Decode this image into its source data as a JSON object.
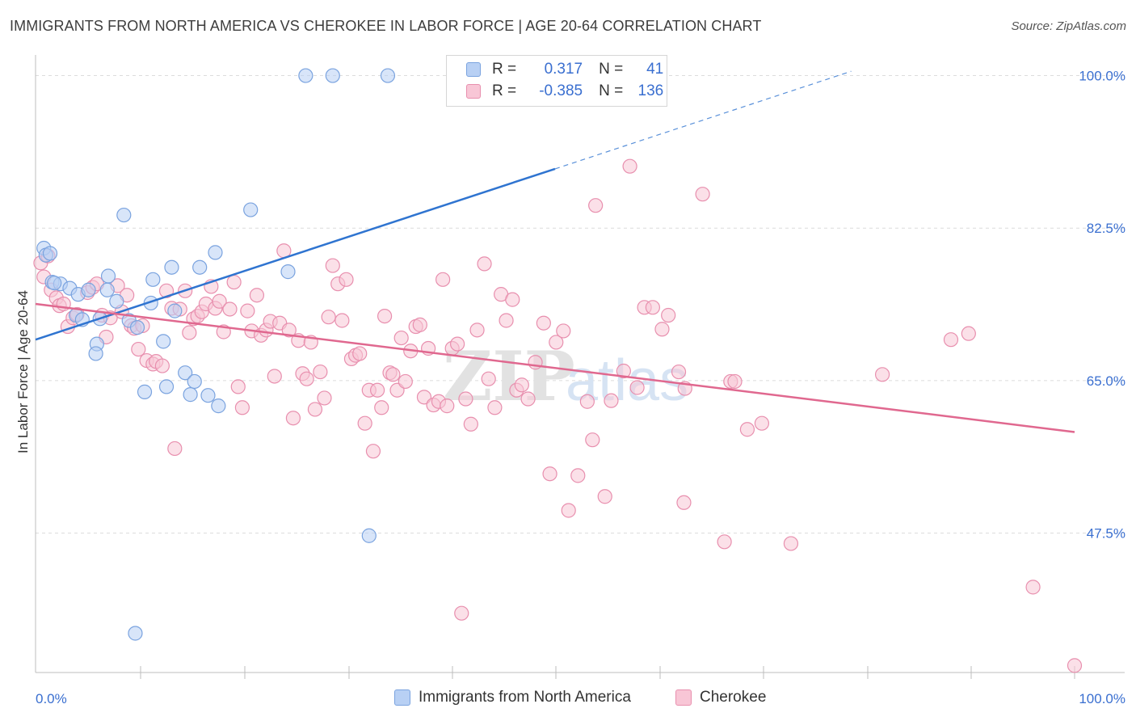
{
  "header": {
    "title": "IMMIGRANTS FROM NORTH AMERICA VS CHEROKEE IN LABOR FORCE | AGE 20-64 CORRELATION CHART",
    "source": "Source: ZipAtlas.com"
  },
  "legend": {
    "rows": [
      {
        "r_label": "R =",
        "r_value": "0.317",
        "n_label": "N =",
        "n_value": "41",
        "color": "#b8d0f4",
        "border": "#7aa3df"
      },
      {
        "r_label": "R =",
        "r_value": "-0.385",
        "n_label": "N =",
        "n_value": "136",
        "color": "#f8c6d6",
        "border": "#e88fae"
      }
    ]
  },
  "bottom_legend": [
    {
      "label": "Immigrants from North America",
      "color": "#b8d0f4",
      "border": "#7aa3df"
    },
    {
      "label": "Cherokee",
      "color": "#f8c6d6",
      "border": "#e88fae"
    }
  ],
  "watermark": {
    "part1": "ZIP",
    "part2": "atlas"
  },
  "chart_data": {
    "type": "scatter",
    "ylabel": "In Labor Force | Age 20-64",
    "xlabel": "",
    "x_tick_labels": [
      "0.0%",
      "100.0%"
    ],
    "y_tick_labels": [
      "100.0%",
      "82.5%",
      "65.0%",
      "47.5%"
    ],
    "y_ticks": [
      100.0,
      82.5,
      65.0,
      47.5
    ],
    "xlim": [
      0,
      100
    ],
    "ylim": [
      31.5,
      102
    ],
    "grid": "horizontal dashed",
    "series": [
      {
        "name": "Immigrants from North America",
        "color": "#7aa3df",
        "fill": "#b8d0f4",
        "trend": {
          "x0": 0,
          "y0": 69.7,
          "x1": 50,
          "y1": 89.3,
          "dash_to_x": 78.5,
          "dash_to_y": 100.5,
          "color": "#2f74d0"
        },
        "points": [
          [
            0.8,
            80.2
          ],
          [
            1.0,
            79.4
          ],
          [
            1.4,
            79.6
          ],
          [
            1.6,
            76.3
          ],
          [
            2.4,
            76.1
          ],
          [
            3.3,
            75.6
          ],
          [
            4.1,
            74.9
          ],
          [
            5.1,
            75.4
          ],
          [
            3.9,
            72.5
          ],
          [
            4.5,
            72.0
          ],
          [
            6.2,
            72.1
          ],
          [
            6.9,
            75.4
          ],
          [
            7.0,
            77.0
          ],
          [
            7.8,
            74.1
          ],
          [
            8.5,
            84.0
          ],
          [
            9.0,
            71.9
          ],
          [
            9.8,
            71.1
          ],
          [
            10.5,
            63.7
          ],
          [
            11.1,
            73.9
          ],
          [
            11.3,
            76.6
          ],
          [
            12.3,
            69.5
          ],
          [
            12.6,
            64.3
          ],
          [
            13.1,
            78.0
          ],
          [
            13.4,
            73.0
          ],
          [
            14.4,
            65.9
          ],
          [
            14.9,
            63.4
          ],
          [
            15.3,
            64.9
          ],
          [
            15.8,
            78.0
          ],
          [
            16.6,
            63.3
          ],
          [
            17.3,
            79.7
          ],
          [
            17.6,
            62.1
          ],
          [
            20.7,
            84.6
          ],
          [
            24.3,
            77.5
          ],
          [
            26.0,
            100.0
          ],
          [
            28.6,
            100.0
          ],
          [
            33.9,
            100.0
          ],
          [
            32.1,
            47.2
          ],
          [
            9.6,
            36.0
          ],
          [
            5.9,
            69.2
          ],
          [
            5.8,
            68.1
          ],
          [
            1.8,
            76.2
          ]
        ]
      },
      {
        "name": "Cherokee",
        "color": "#e88fae",
        "fill": "#f8c6d6",
        "trend": {
          "x0": 0,
          "y0": 73.8,
          "x1": 100,
          "y1": 59.1,
          "color": "#e0688f"
        },
        "points": [
          [
            0.5,
            78.5
          ],
          [
            0.8,
            76.9
          ],
          [
            1.2,
            79.3
          ],
          [
            1.5,
            75.4
          ],
          [
            2.0,
            74.5
          ],
          [
            2.3,
            73.6
          ],
          [
            2.7,
            73.8
          ],
          [
            3.1,
            71.2
          ],
          [
            3.6,
            72.2
          ],
          [
            4.0,
            72.6
          ],
          [
            5.0,
            75.1
          ],
          [
            5.5,
            75.7
          ],
          [
            5.9,
            76.1
          ],
          [
            6.4,
            72.5
          ],
          [
            6.8,
            70.0
          ],
          [
            7.2,
            72.2
          ],
          [
            7.9,
            75.9
          ],
          [
            8.3,
            72.9
          ],
          [
            8.8,
            74.8
          ],
          [
            9.2,
            71.3
          ],
          [
            9.5,
            71.0
          ],
          [
            9.9,
            68.6
          ],
          [
            10.3,
            71.3
          ],
          [
            10.7,
            67.3
          ],
          [
            11.3,
            66.9
          ],
          [
            11.6,
            67.2
          ],
          [
            12.2,
            66.7
          ],
          [
            12.6,
            75.3
          ],
          [
            13.1,
            73.3
          ],
          [
            13.4,
            57.2
          ],
          [
            13.9,
            73.2
          ],
          [
            14.4,
            75.3
          ],
          [
            14.8,
            70.5
          ],
          [
            15.2,
            72.1
          ],
          [
            15.6,
            72.4
          ],
          [
            16.0,
            72.9
          ],
          [
            16.4,
            73.8
          ],
          [
            16.9,
            75.8
          ],
          [
            17.3,
            73.3
          ],
          [
            17.7,
            74.1
          ],
          [
            18.1,
            70.6
          ],
          [
            18.7,
            73.2
          ],
          [
            19.1,
            76.3
          ],
          [
            19.5,
            64.3
          ],
          [
            19.9,
            61.9
          ],
          [
            20.4,
            73.0
          ],
          [
            20.8,
            70.7
          ],
          [
            21.3,
            74.8
          ],
          [
            21.7,
            70.2
          ],
          [
            22.2,
            70.8
          ],
          [
            22.6,
            71.8
          ],
          [
            23.0,
            65.5
          ],
          [
            23.5,
            71.6
          ],
          [
            23.9,
            79.9
          ],
          [
            24.4,
            70.8
          ],
          [
            24.8,
            60.7
          ],
          [
            25.3,
            69.6
          ],
          [
            25.7,
            65.8
          ],
          [
            26.1,
            65.2
          ],
          [
            26.5,
            69.4
          ],
          [
            26.9,
            61.7
          ],
          [
            27.4,
            66.0
          ],
          [
            27.8,
            63.0
          ],
          [
            28.2,
            72.3
          ],
          [
            28.6,
            78.2
          ],
          [
            29.1,
            76.1
          ],
          [
            29.5,
            71.9
          ],
          [
            29.9,
            76.6
          ],
          [
            30.4,
            67.5
          ],
          [
            30.8,
            67.9
          ],
          [
            31.2,
            68.1
          ],
          [
            31.7,
            60.1
          ],
          [
            32.1,
            63.9
          ],
          [
            32.5,
            56.9
          ],
          [
            32.9,
            63.9
          ],
          [
            33.3,
            61.9
          ],
          [
            33.6,
            72.4
          ],
          [
            34.1,
            65.9
          ],
          [
            34.4,
            65.7
          ],
          [
            34.8,
            63.9
          ],
          [
            35.2,
            69.9
          ],
          [
            35.6,
            64.9
          ],
          [
            36.1,
            68.4
          ],
          [
            36.6,
            71.2
          ],
          [
            37.0,
            71.4
          ],
          [
            37.4,
            63.1
          ],
          [
            37.8,
            68.7
          ],
          [
            38.3,
            62.2
          ],
          [
            38.8,
            62.6
          ],
          [
            39.2,
            76.6
          ],
          [
            39.6,
            62.1
          ],
          [
            40.1,
            68.7
          ],
          [
            40.6,
            69.2
          ],
          [
            41.0,
            38.3
          ],
          [
            41.4,
            62.9
          ],
          [
            41.9,
            60.0
          ],
          [
            42.5,
            70.8
          ],
          [
            43.2,
            78.4
          ],
          [
            43.6,
            65.2
          ],
          [
            44.2,
            61.9
          ],
          [
            44.8,
            74.9
          ],
          [
            45.3,
            71.9
          ],
          [
            45.9,
            74.3
          ],
          [
            46.3,
            63.9
          ],
          [
            46.8,
            64.5
          ],
          [
            47.4,
            62.9
          ],
          [
            48.1,
            67.1
          ],
          [
            48.9,
            71.6
          ],
          [
            49.5,
            54.3
          ],
          [
            50.1,
            69.4
          ],
          [
            50.8,
            70.7
          ],
          [
            51.3,
            50.1
          ],
          [
            52.2,
            54.1
          ],
          [
            53.1,
            62.6
          ],
          [
            53.6,
            58.2
          ],
          [
            53.9,
            85.1
          ],
          [
            54.8,
            51.7
          ],
          [
            55.4,
            62.7
          ],
          [
            56.6,
            66.1
          ],
          [
            57.2,
            89.6
          ],
          [
            57.9,
            64.2
          ],
          [
            58.6,
            73.4
          ],
          [
            59.4,
            73.4
          ],
          [
            60.3,
            70.9
          ],
          [
            60.9,
            72.5
          ],
          [
            61.9,
            66.0
          ],
          [
            62.5,
            64.1
          ],
          [
            64.2,
            86.4
          ],
          [
            66.3,
            46.5
          ],
          [
            66.9,
            64.9
          ],
          [
            67.3,
            64.9
          ],
          [
            68.5,
            59.4
          ],
          [
            69.9,
            60.1
          ],
          [
            72.7,
            46.3
          ],
          [
            81.5,
            65.7
          ],
          [
            88.1,
            69.7
          ],
          [
            89.8,
            70.4
          ],
          [
            96.0,
            41.3
          ],
          [
            62.4,
            51.0
          ],
          [
            100.0,
            32.3
          ]
        ]
      }
    ]
  }
}
